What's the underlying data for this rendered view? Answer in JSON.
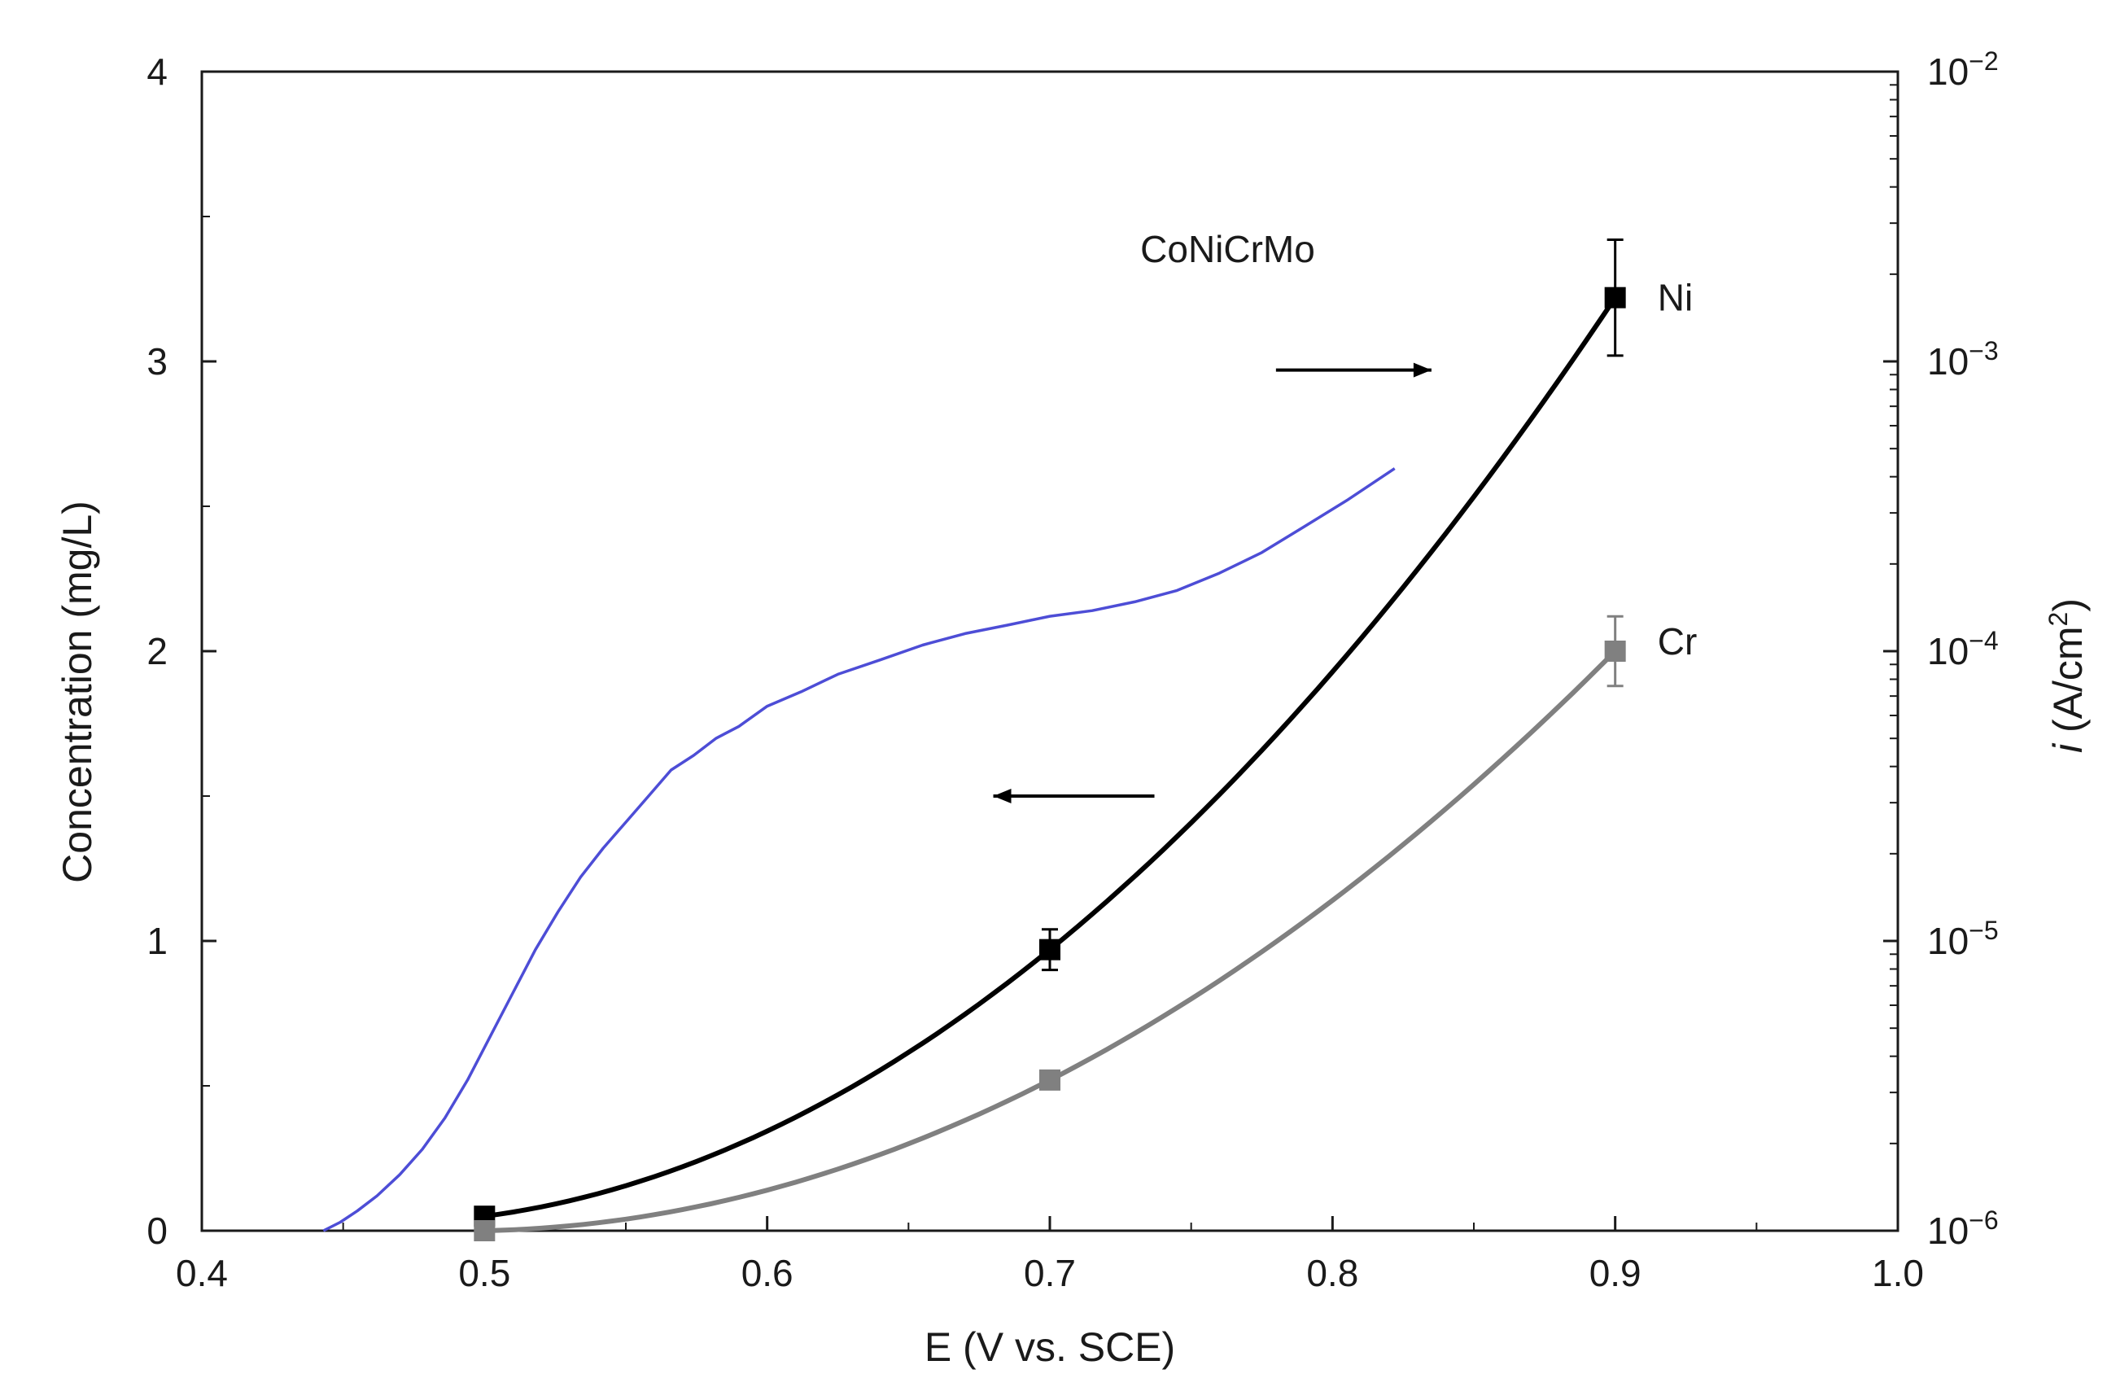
{
  "chart_data": {
    "type": "line",
    "xlabel": "E (V vs. SCE)",
    "ylabel_left": "Concentration  (mg/L)",
    "ylabel_right_italic": "i",
    "ylabel_right_rest": " (A/cm",
    "ylabel_right_sup": "2",
    "ylabel_right_close": ")",
    "xlim": [
      0.4,
      1.0
    ],
    "ylim_left": [
      0,
      4
    ],
    "ylim_right_log10": [
      -6,
      -2
    ],
    "x_ticks": [
      {
        "value": 0.4,
        "label": "0.4"
      },
      {
        "value": 0.5,
        "label": "0.5"
      },
      {
        "value": 0.6,
        "label": "0.6"
      },
      {
        "value": 0.7,
        "label": "0.7"
      },
      {
        "value": 0.8,
        "label": "0.8"
      },
      {
        "value": 0.9,
        "label": "0.9"
      },
      {
        "value": 1.0,
        "label": "1.0"
      }
    ],
    "y_left_ticks": [
      {
        "value": 0,
        "label": "0"
      },
      {
        "value": 1,
        "label": "1"
      },
      {
        "value": 2,
        "label": "2"
      },
      {
        "value": 3,
        "label": "3"
      },
      {
        "value": 4,
        "label": "4"
      }
    ],
    "y_right_ticks": [
      {
        "exp": -6,
        "base": "10",
        "sup": "−6"
      },
      {
        "exp": -5,
        "base": "10",
        "sup": "−5"
      },
      {
        "exp": -4,
        "base": "10",
        "sup": "−4"
      },
      {
        "exp": -3,
        "base": "10",
        "sup": "−3"
      },
      {
        "exp": -2,
        "base": "10",
        "sup": "−2"
      }
    ],
    "series": [
      {
        "name": "CoNiCrMo",
        "axis": "right",
        "color": "#4d4dd6",
        "points": [
          [
            0.443,
            1e-06
          ],
          [
            0.449,
            1.07e-06
          ],
          [
            0.455,
            1.17e-06
          ],
          [
            0.462,
            1.32e-06
          ],
          [
            0.47,
            1.56e-06
          ],
          [
            0.478,
            1.91e-06
          ],
          [
            0.486,
            2.45e-06
          ],
          [
            0.494,
            3.31e-06
          ],
          [
            0.502,
            4.68e-06
          ],
          [
            0.51,
            6.61e-06
          ],
          [
            0.518,
            9.33e-06
          ],
          [
            0.526,
            1.26e-05
          ],
          [
            0.534,
            1.66e-05
          ],
          [
            0.542,
            2.09e-05
          ],
          [
            0.55,
            2.57e-05
          ],
          [
            0.558,
            3.16e-05
          ],
          [
            0.566,
            3.89e-05
          ],
          [
            0.574,
            4.37e-05
          ],
          [
            0.582,
            5.01e-05
          ],
          [
            0.59,
            5.5e-05
          ],
          [
            0.6,
            6.46e-05
          ],
          [
            0.612,
            7.24e-05
          ],
          [
            0.625,
            8.32e-05
          ],
          [
            0.64,
            9.33e-05
          ],
          [
            0.655,
            0.000105
          ],
          [
            0.67,
            0.000115
          ],
          [
            0.685,
            0.000123
          ],
          [
            0.7,
            0.000132
          ],
          [
            0.715,
            0.000138
          ],
          [
            0.73,
            0.000148
          ],
          [
            0.745,
            0.000162
          ],
          [
            0.76,
            0.000186
          ],
          [
            0.775,
            0.000219
          ],
          [
            0.79,
            0.000269
          ],
          [
            0.805,
            0.000331
          ],
          [
            0.822,
            0.000427
          ]
        ]
      },
      {
        "name": "Ni",
        "axis": "left",
        "color": "#000000",
        "points": [
          [
            0.5,
            0.05
          ],
          [
            0.7,
            0.97
          ],
          [
            0.9,
            3.22
          ]
        ],
        "error": [
          0,
          0.07,
          0.2
        ]
      },
      {
        "name": "Cr",
        "axis": "left",
        "color": "#808080",
        "points": [
          [
            0.5,
            0.0
          ],
          [
            0.7,
            0.52
          ],
          [
            0.9,
            2.0
          ]
        ],
        "error": [
          0,
          0.03,
          0.12
        ]
      }
    ],
    "annotations": {
      "conicrmo_label": "CoNiCrMo",
      "ni_label": "Ni",
      "cr_label": "Cr",
      "arrow_right": "points to right axis",
      "arrow_left": "points to left axis"
    }
  }
}
